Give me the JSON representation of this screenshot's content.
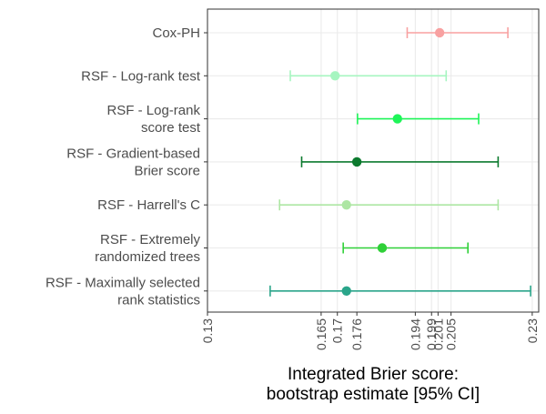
{
  "chart_data": {
    "type": "forest",
    "title": "",
    "xlabel": "Integrated Brier score:\nbootstrap estimate [95% CI]",
    "ylabel": "",
    "xlim": [
      0.13,
      0.232
    ],
    "grid": true,
    "legend": "none",
    "x_ticks": [
      0.13,
      0.165,
      0.17,
      0.176,
      0.194,
      0.199,
      0.201,
      0.205,
      0.23
    ],
    "x_tick_labels": [
      "0.13",
      "0.165",
      "0.17",
      "0.176",
      "0.194",
      "0.199",
      "0.201",
      "0.205",
      "0.23"
    ],
    "categories": [
      "Cox-PH",
      "RSF - Log-rank test",
      "RSF - Log-rank\nscore test",
      "RSF - Gradient-based\nBrier score",
      "RSF - Harrell's C",
      "RSF - Extremely\nrandomized trees",
      "RSF - Maximally selected\nrank statistics"
    ],
    "series": [
      {
        "name": "Cox-PH",
        "estimate": 0.2015,
        "lower": 0.1915,
        "upper": 0.2225,
        "color": "#f8a1a1"
      },
      {
        "name": "RSF - Log-rank test",
        "estimate": 0.1693,
        "lower": 0.1555,
        "upper": 0.2035,
        "color": "#a6f5c0"
      },
      {
        "name": "RSF - Log-rank score test",
        "estimate": 0.1885,
        "lower": 0.1762,
        "upper": 0.2135,
        "color": "#1ef558"
      },
      {
        "name": "RSF - Gradient-based Brier score",
        "estimate": 0.176,
        "lower": 0.159,
        "upper": 0.2195,
        "color": "#0c7a2e"
      },
      {
        "name": "RSF - Harrell's C",
        "estimate": 0.1728,
        "lower": 0.1522,
        "upper": 0.2195,
        "color": "#ade6a3"
      },
      {
        "name": "RSF - Extremely randomized trees",
        "estimate": 0.1838,
        "lower": 0.1718,
        "upper": 0.2102,
        "color": "#2fd038"
      },
      {
        "name": "RSF - Maximally selected rank statistics",
        "estimate": 0.1728,
        "lower": 0.1493,
        "upper": 0.2295,
        "color": "#2aa58a"
      }
    ]
  }
}
